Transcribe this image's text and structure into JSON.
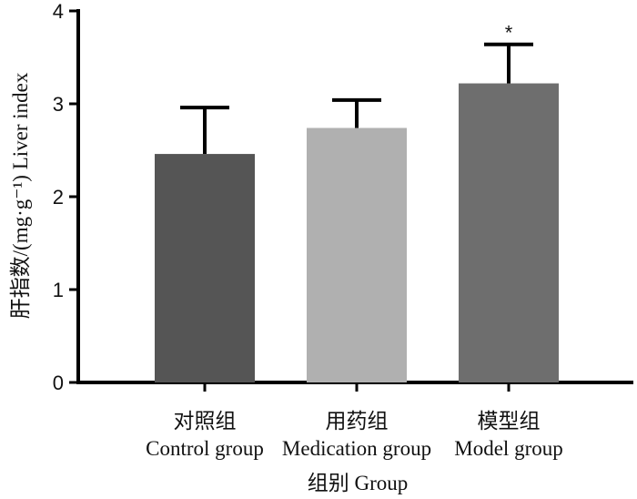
{
  "chart_data": {
    "type": "bar",
    "categories": [
      {
        "cn": "对照组",
        "en": "Control group"
      },
      {
        "cn": "用药组",
        "en": "Medication group"
      },
      {
        "cn": "模型组",
        "en": "Model group"
      }
    ],
    "values": [
      2.46,
      2.74,
      3.22
    ],
    "errors": [
      0.5,
      0.3,
      0.42
    ],
    "significance": [
      "",
      "",
      "*"
    ],
    "colors": [
      "#555555",
      "#b0b0b0",
      "#6e6e6e"
    ],
    "ylim": [
      0,
      4
    ],
    "yticks": [
      "0",
      "1",
      "2",
      "3",
      "4"
    ],
    "xlabel": "组别 Group",
    "ylabel": "肝指数/(mg·g⁻¹)  Liver index",
    "grid": false
  }
}
